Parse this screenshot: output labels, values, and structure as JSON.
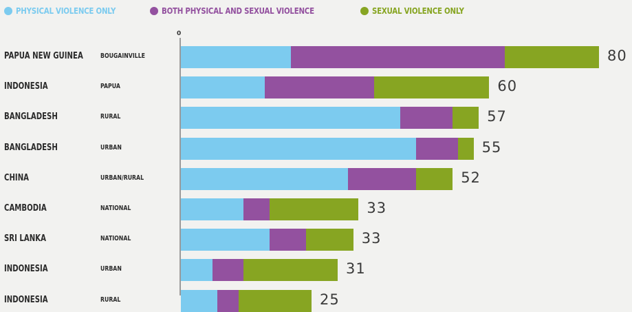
{
  "legend": [
    {
      "label": "PHYSICAL VIOLENCE ONLY",
      "color": "#7ccbef"
    },
    {
      "label": "BOTH PHYSICAL AND SEXUAL VIOLENCE",
      "color": "#93519f"
    },
    {
      "label": "SEXUAL VIOLENCE ONLY",
      "color": "#87a522"
    }
  ],
  "axis_tick": "0",
  "chart_data": {
    "type": "bar",
    "orientation": "horizontal",
    "stacked": true,
    "title": "",
    "xlabel": "",
    "ylabel": "",
    "xlim": [
      0,
      80
    ],
    "grid": false,
    "legend_position": "top-left",
    "categories": [
      {
        "country": "PAPUA NEW GUINEA",
        "region": "BOUGAINVILLE"
      },
      {
        "country": "INDONESIA",
        "region": "PAPUA"
      },
      {
        "country": "BANGLADESH",
        "region": "RURAL"
      },
      {
        "country": "BANGLADESH",
        "region": "URBAN"
      },
      {
        "country": "CHINA",
        "region": "URBAN/RURAL"
      },
      {
        "country": "CAMBODIA",
        "region": "NATIONAL"
      },
      {
        "country": "SRI LANKA",
        "region": "NATIONAL"
      },
      {
        "country": "INDONESIA",
        "region": "URBAN"
      },
      {
        "country": "INDONESIA",
        "region": "RURAL"
      }
    ],
    "series": [
      {
        "name": "PHYSICAL VIOLENCE ONLY",
        "color": "#7ccbef",
        "values": [
          21,
          16,
          42,
          45,
          32,
          12,
          17,
          6,
          7
        ]
      },
      {
        "name": "BOTH PHYSICAL AND SEXUAL VIOLENCE",
        "color": "#93519f",
        "values": [
          41,
          21,
          10,
          8,
          13,
          5,
          7,
          6,
          4
        ]
      },
      {
        "name": "SEXUAL VIOLENCE ONLY",
        "color": "#87a522",
        "values": [
          18,
          22,
          5,
          3,
          7,
          17,
          9,
          18,
          14
        ]
      }
    ],
    "totals": [
      "80",
      "60",
      "57",
      "55",
      "52",
      "33",
      "33",
      "31",
      "25"
    ]
  }
}
